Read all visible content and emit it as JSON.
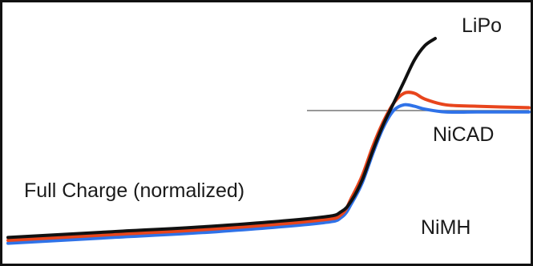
{
  "chart_data": {
    "type": "line",
    "title": "",
    "xlabel": "",
    "ylabel": "",
    "reference_line": {
      "label": "Full Charge (normalized)",
      "y": 1.0,
      "color": "#777777"
    },
    "xlim": [
      0,
      100
    ],
    "ylim": [
      0,
      1.6
    ],
    "series": [
      {
        "name": "LiPo",
        "color": "#111111",
        "x": [
          0,
          20,
          40,
          60,
          64,
          66,
          68,
          70,
          72,
          74,
          76,
          78,
          80,
          82
        ],
        "y": [
          0.12,
          0.16,
          0.2,
          0.26,
          0.3,
          0.38,
          0.52,
          0.72,
          0.9,
          1.05,
          1.2,
          1.35,
          1.45,
          1.5
        ]
      },
      {
        "name": "NiCAD",
        "color": "#e8451c",
        "x": [
          0,
          20,
          40,
          60,
          64,
          66,
          68,
          70,
          72,
          74,
          76,
          78,
          80,
          84,
          90,
          100
        ],
        "y": [
          0.1,
          0.14,
          0.18,
          0.24,
          0.28,
          0.4,
          0.55,
          0.75,
          0.92,
          1.05,
          1.12,
          1.12,
          1.08,
          1.04,
          1.03,
          1.02
        ]
      },
      {
        "name": "NiMH",
        "color": "#2f72e8",
        "x": [
          0,
          20,
          40,
          60,
          64,
          66,
          68,
          70,
          72,
          74,
          76,
          78,
          80,
          84,
          90,
          100
        ],
        "y": [
          0.08,
          0.12,
          0.16,
          0.22,
          0.26,
          0.36,
          0.5,
          0.7,
          0.88,
          1.0,
          1.04,
          1.03,
          1.01,
          0.99,
          0.99,
          0.99
        ]
      }
    ],
    "grid": false,
    "legend": "inline"
  }
}
